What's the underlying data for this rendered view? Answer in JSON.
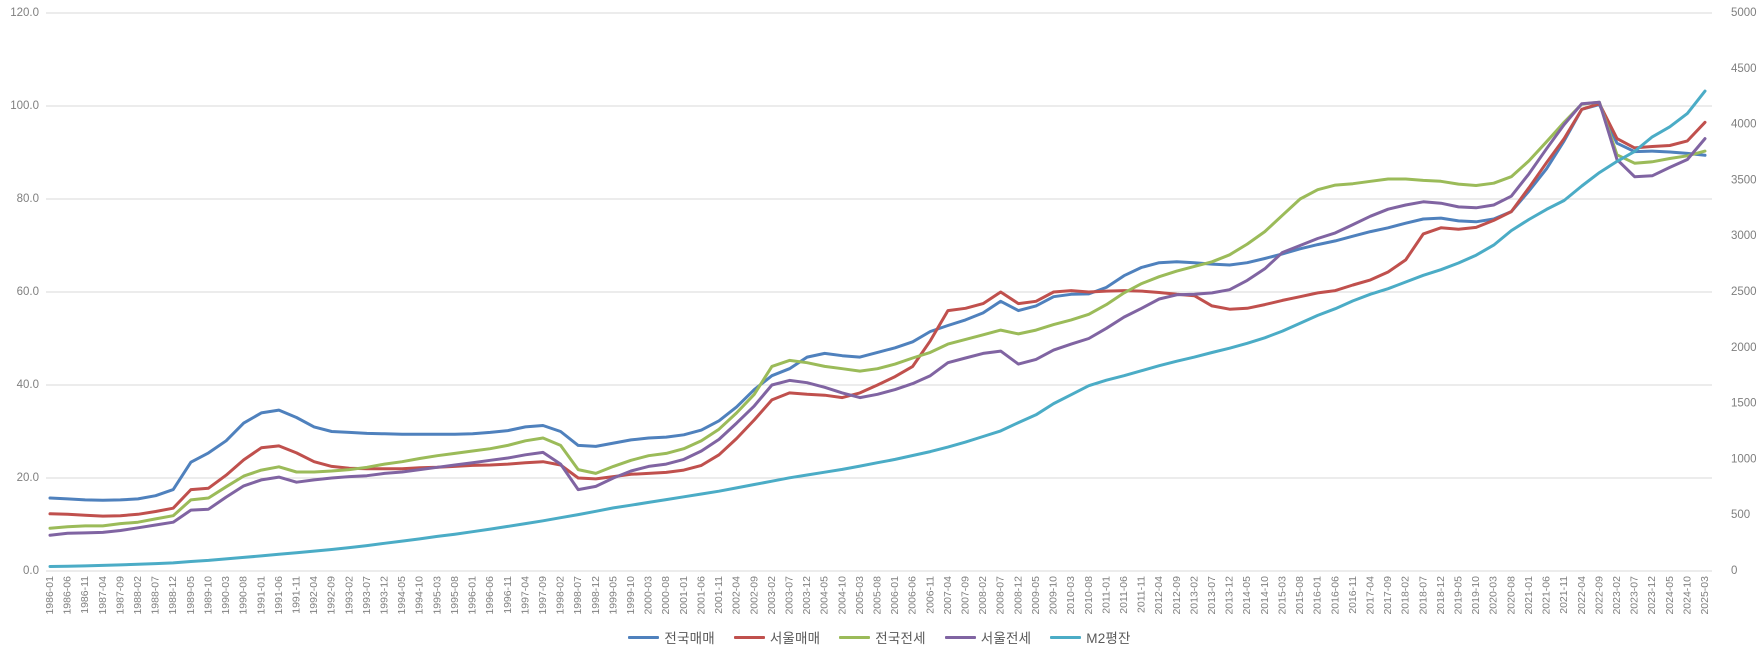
{
  "chart_data": {
    "type": "line",
    "title": "",
    "legend_position": "bottom",
    "grid": true,
    "background": "#FFFFFF",
    "gridline_color": "#D9D9D9",
    "axis_text_color": "#7F7F7F",
    "legend_text_color": "#595959",
    "left_axis": {
      "min": 0,
      "max": 120,
      "step": 20,
      "tick_labels": [
        "120.0",
        "100.0",
        "80.0",
        "60.0",
        "40.0",
        "20.0",
        "0.0"
      ]
    },
    "right_axis": {
      "min": 0,
      "max": 5000,
      "step": 500,
      "tick_labels": [
        "5000",
        "4500",
        "4000",
        "3500",
        "3000",
        "2500",
        "2000",
        "1500",
        "1000",
        "500",
        "0"
      ]
    },
    "x_tick_labels": [
      "1986-01",
      "1986-06",
      "1986-11",
      "1987-04",
      "1987-09",
      "1988-02",
      "1988-07",
      "1988-12",
      "1989-05",
      "1989-10",
      "1990-03",
      "1990-08",
      "1991-01",
      "1991-06",
      "1991-11",
      "1992-04",
      "1992-09",
      "1993-02",
      "1993-07",
      "1993-12",
      "1994-05",
      "1994-10",
      "1995-03",
      "1995-08",
      "1996-01",
      "1996-06",
      "1996-11",
      "1997-04",
      "1997-09",
      "1998-02",
      "1998-07",
      "1998-12",
      "1999-05",
      "1999-10",
      "2000-03",
      "2000-08",
      "2001-01",
      "2001-06",
      "2001-11",
      "2002-04",
      "2002-09",
      "2003-02",
      "2003-07",
      "2003-12",
      "2004-05",
      "2004-10",
      "2005-03",
      "2005-08",
      "2006-01",
      "2006-06",
      "2006-11",
      "2007-04",
      "2007-09",
      "2008-02",
      "2008-07",
      "2008-12",
      "2009-05",
      "2009-10",
      "2010-03",
      "2010-08",
      "2011-01",
      "2011-06",
      "2011-11",
      "2012-04",
      "2012-09",
      "2013-02",
      "2013-07",
      "2013-12",
      "2014-05",
      "2014-10",
      "2015-03",
      "2015-08",
      "2016-01",
      "2016-06",
      "2016-11",
      "2017-04",
      "2017-09",
      "2018-02",
      "2018-07",
      "2018-12",
      "2019-05",
      "2019-10",
      "2020-03",
      "2020-08",
      "2021-01",
      "2021-06",
      "2021-11",
      "2022-04",
      "2022-09",
      "2023-02",
      "2023-07",
      "2023-12",
      "2024-05",
      "2024-10",
      "2025-03"
    ],
    "series": [
      {
        "name": "전국매매",
        "color": "#4F81BD",
        "axis": "left",
        "values": [
          15.7,
          15.5,
          15.3,
          15.2,
          15.3,
          15.5,
          16.2,
          17.5,
          23.4,
          25.4,
          28.0,
          31.8,
          34.0,
          34.6,
          33.0,
          31.0,
          30.0,
          29.8,
          29.6,
          29.5,
          29.4,
          29.4,
          29.4,
          29.4,
          29.5,
          29.8,
          30.2,
          31.0,
          31.3,
          30.0,
          27.0,
          26.8,
          27.5,
          28.2,
          28.6,
          28.8,
          29.3,
          30.3,
          32.3,
          35.3,
          39.0,
          42.0,
          43.5,
          46.0,
          46.8,
          46.3,
          46.0,
          47.0,
          48.0,
          49.3,
          51.5,
          52.8,
          54.0,
          55.5,
          58.0,
          56.0,
          57.0,
          59.0,
          59.5,
          59.6,
          61.0,
          63.5,
          65.3,
          66.3,
          66.5,
          66.3,
          66.0,
          65.8,
          66.3,
          67.2,
          68.2,
          69.3,
          70.2,
          71.0,
          72.0,
          73.0,
          73.8,
          74.8,
          75.7,
          75.9,
          75.3,
          75.1,
          75.7,
          77.3,
          81.7,
          86.5,
          92.5,
          99.3,
          100.3,
          92.0,
          90.2,
          90.3,
          90.1,
          89.8,
          89.4
        ]
      },
      {
        "name": "서울매매",
        "color": "#C0504D",
        "axis": "left",
        "values": [
          12.3,
          12.2,
          12.0,
          11.8,
          11.9,
          12.2,
          12.8,
          13.5,
          17.5,
          17.8,
          20.6,
          23.9,
          26.5,
          26.9,
          25.4,
          23.5,
          22.5,
          22.1,
          22.0,
          22.0,
          22.0,
          22.2,
          22.3,
          22.5,
          22.7,
          22.8,
          23.0,
          23.3,
          23.5,
          22.8,
          20.0,
          19.8,
          20.3,
          20.8,
          21.0,
          21.2,
          21.7,
          22.7,
          25.0,
          28.5,
          32.5,
          36.8,
          38.3,
          38.0,
          37.8,
          37.3,
          38.3,
          40.0,
          41.8,
          44.0,
          49.5,
          56.0,
          56.5,
          57.5,
          60.0,
          57.5,
          58.0,
          60.0,
          60.3,
          60.0,
          60.2,
          60.3,
          60.2,
          59.9,
          59.5,
          59.2,
          57.0,
          56.3,
          56.5,
          57.3,
          58.2,
          59.0,
          59.8,
          60.3,
          61.5,
          62.6,
          64.3,
          66.9,
          72.5,
          73.8,
          73.5,
          73.9,
          75.4,
          77.3,
          82.4,
          87.8,
          93.0,
          99.3,
          100.5,
          93.0,
          91.0,
          91.3,
          91.5,
          92.5,
          96.5
        ]
      },
      {
        "name": "전국전세",
        "color": "#9BBB59",
        "axis": "left",
        "values": [
          9.2,
          9.5,
          9.7,
          9.7,
          10.2,
          10.5,
          11.2,
          11.9,
          15.3,
          15.7,
          18.1,
          20.4,
          21.7,
          22.4,
          21.3,
          21.3,
          21.5,
          21.8,
          22.3,
          23.0,
          23.5,
          24.2,
          24.8,
          25.3,
          25.8,
          26.3,
          27.0,
          28.0,
          28.6,
          27.0,
          21.8,
          21.0,
          22.5,
          23.8,
          24.8,
          25.3,
          26.3,
          28.0,
          30.5,
          34.0,
          38.0,
          44.0,
          45.3,
          44.8,
          44.0,
          43.5,
          43.0,
          43.5,
          44.5,
          45.8,
          47.0,
          48.8,
          49.8,
          50.8,
          51.8,
          51.0,
          51.8,
          53.0,
          54.0,
          55.2,
          57.3,
          59.8,
          61.8,
          63.3,
          64.5,
          65.5,
          66.5,
          68.0,
          70.3,
          73.0,
          76.5,
          80.0,
          82.0,
          83.0,
          83.3,
          83.8,
          84.3,
          84.3,
          84.0,
          83.8,
          83.2,
          82.9,
          83.4,
          84.8,
          88.2,
          92.3,
          96.5,
          100.4,
          100.8,
          89.5,
          87.7,
          88.0,
          88.7,
          89.3,
          90.3
        ]
      },
      {
        "name": "서울전세",
        "color": "#8064A2",
        "axis": "left",
        "values": [
          7.7,
          8.1,
          8.2,
          8.3,
          8.7,
          9.3,
          9.9,
          10.5,
          13.1,
          13.3,
          15.9,
          18.3,
          19.6,
          20.2,
          19.1,
          19.6,
          20.0,
          20.3,
          20.5,
          21.0,
          21.3,
          21.8,
          22.3,
          22.8,
          23.3,
          23.8,
          24.3,
          25.0,
          25.5,
          23.0,
          17.5,
          18.2,
          20.0,
          21.5,
          22.5,
          23.0,
          24.0,
          25.8,
          28.3,
          31.8,
          35.5,
          40.0,
          41.0,
          40.5,
          39.5,
          38.3,
          37.3,
          38.0,
          39.0,
          40.3,
          42.0,
          44.8,
          45.8,
          46.8,
          47.3,
          44.5,
          45.5,
          47.5,
          48.8,
          50.0,
          52.2,
          54.6,
          56.5,
          58.5,
          59.4,
          59.5,
          59.8,
          60.5,
          62.5,
          65.0,
          68.5,
          70.0,
          71.5,
          72.7,
          74.5,
          76.3,
          77.8,
          78.7,
          79.4,
          79.1,
          78.3,
          78.1,
          78.7,
          80.6,
          85.4,
          90.8,
          96.0,
          100.5,
          100.8,
          88.5,
          84.8,
          85.0,
          86.8,
          88.5,
          93.0
        ]
      },
      {
        "name": "M2평잔",
        "color": "#4BACC6",
        "axis": "right",
        "values": [
          40,
          43,
          46,
          50,
          55,
          60,
          66,
          73,
          85,
          95,
          108,
          122,
          135,
          150,
          163,
          178,
          193,
          210,
          228,
          248,
          268,
          288,
          310,
          330,
          352,
          375,
          400,
          425,
          450,
          478,
          505,
          535,
          565,
          590,
          615,
          640,
          665,
          690,
          715,
          745,
          775,
          805,
          835,
          860,
          885,
          910,
          940,
          970,
          1000,
          1035,
          1070,
          1110,
          1155,
          1205,
          1255,
          1330,
          1400,
          1500,
          1580,
          1660,
          1710,
          1750,
          1795,
          1840,
          1880,
          1917,
          1958,
          1996,
          2040,
          2090,
          2150,
          2220,
          2290,
          2350,
          2420,
          2480,
          2530,
          2590,
          2650,
          2700,
          2760,
          2830,
          2920,
          3050,
          3150,
          3240,
          3320,
          3450,
          3570,
          3670,
          3760,
          3890,
          3980,
          4100,
          4300
        ]
      }
    ]
  }
}
